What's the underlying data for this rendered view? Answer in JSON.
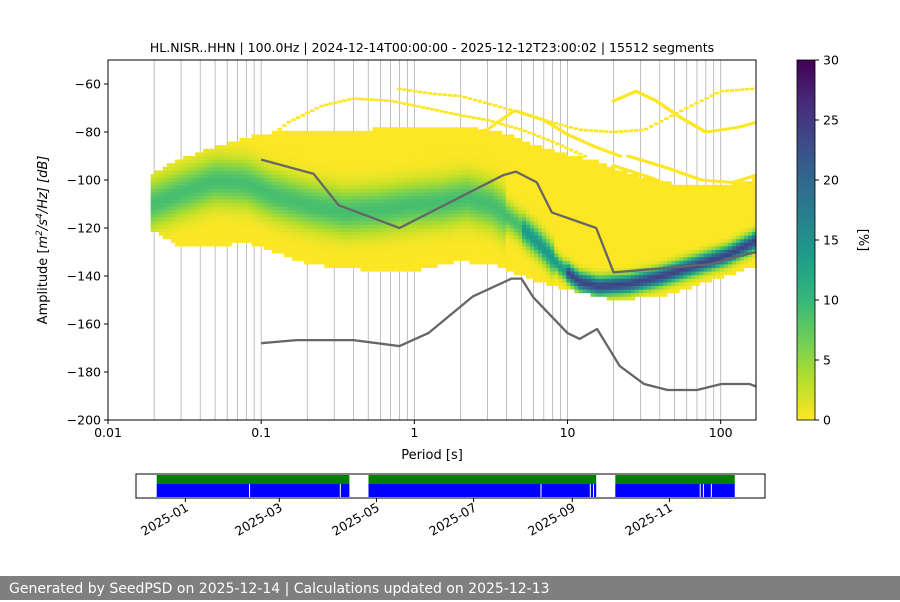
{
  "chart_data": {
    "type": "heatmap",
    "title": "HL.NISR..HHN | 100.0Hz | 2024-12-14T00:00:00 - 2025-12-12T23:00:02 | 15512 segments",
    "xlabel": "Period [s]",
    "ylabel": "Amplitude [m²/s⁴/Hz] [dB]",
    "ylabel_parts": {
      "prefix": "Amplitude [",
      "m": "m",
      "exp2": "2",
      "s": "/s",
      "exp4": "4",
      "rest": "/Hz] [dB]"
    },
    "xscale": "log",
    "xlim": [
      0.01,
      170
    ],
    "ylim": [
      -200,
      -50
    ],
    "x_ticks": [
      {
        "value": 0.01,
        "label": "0.01"
      },
      {
        "value": 0.1,
        "label": "0.1"
      },
      {
        "value": 1,
        "label": "1"
      },
      {
        "value": 10,
        "label": "10"
      },
      {
        "value": 100,
        "label": "100"
      }
    ],
    "y_ticks": [
      {
        "value": -60,
        "label": "−60"
      },
      {
        "value": -80,
        "label": "−80"
      },
      {
        "value": -100,
        "label": "−100"
      },
      {
        "value": -120,
        "label": "−120"
      },
      {
        "value": -140,
        "label": "−140"
      },
      {
        "value": -160,
        "label": "−160"
      },
      {
        "value": -180,
        "label": "−180"
      },
      {
        "value": -200,
        "label": "−200"
      }
    ],
    "grid": "vertical lines at log-period positions",
    "colorbar": {
      "label": "[%]",
      "min": 0,
      "max": 30,
      "ticks": [
        {
          "value": 0,
          "label": "0"
        },
        {
          "value": 5,
          "label": "5"
        },
        {
          "value": 10,
          "label": "10"
        },
        {
          "value": 15,
          "label": "15"
        },
        {
          "value": 20,
          "label": "20"
        },
        {
          "value": 25,
          "label": "25"
        },
        {
          "value": 30,
          "label": "30"
        }
      ],
      "colormap": "viridis_r",
      "colors": [
        "#fde725",
        "#b5de2b",
        "#6ece58",
        "#35b779",
        "#1f9e89",
        "#26828e",
        "#31688e",
        "#3e4989",
        "#482878",
        "#440154"
      ]
    },
    "density": {
      "main_mode": [
        [
          0.019,
          -111
        ],
        [
          0.03,
          -106
        ],
        [
          0.05,
          -101
        ],
        [
          0.08,
          -102
        ],
        [
          0.12,
          -107
        ],
        [
          0.2,
          -111
        ],
        [
          0.35,
          -114
        ],
        [
          0.6,
          -113
        ],
        [
          1.0,
          -111
        ],
        [
          1.5,
          -110
        ],
        [
          2.2,
          -108
        ],
        [
          3.2,
          -111
        ],
        [
          4.5,
          -118
        ],
        [
          6.5,
          -127
        ],
        [
          9,
          -137
        ],
        [
          12,
          -143
        ],
        [
          16,
          -145
        ],
        [
          25,
          -144
        ],
        [
          40,
          -141
        ],
        [
          70,
          -136
        ],
        [
          110,
          -132
        ],
        [
          170,
          -126
        ]
      ],
      "envelope_upper": [
        [
          0.019,
          -98
        ],
        [
          0.03,
          -92
        ],
        [
          0.05,
          -87
        ],
        [
          0.08,
          -83
        ],
        [
          0.12,
          -81
        ],
        [
          0.2,
          -80
        ],
        [
          0.4,
          -80
        ],
        [
          0.7,
          -79
        ],
        [
          1.2,
          -78
        ],
        [
          2,
          -79
        ],
        [
          3.5,
          -80
        ],
        [
          6,
          -86
        ],
        [
          10,
          -90
        ],
        [
          16,
          -93
        ],
        [
          25,
          -98
        ],
        [
          40,
          -101
        ],
        [
          60,
          -103
        ],
        [
          100,
          -103
        ],
        [
          170,
          -100
        ]
      ],
      "envelope_lower": [
        [
          0.019,
          -120
        ],
        [
          0.03,
          -127
        ],
        [
          0.05,
          -127
        ],
        [
          0.08,
          -125
        ],
        [
          0.12,
          -129
        ],
        [
          0.2,
          -134
        ],
        [
          0.35,
          -136
        ],
        [
          0.6,
          -137
        ],
        [
          1.0,
          -137
        ],
        [
          2,
          -133
        ],
        [
          3.5,
          -135
        ],
        [
          6,
          -141
        ],
        [
          10,
          -145
        ],
        [
          20,
          -149
        ],
        [
          40,
          -148
        ],
        [
          70,
          -143
        ],
        [
          110,
          -139
        ],
        [
          170,
          -135
        ]
      ],
      "outlier_traces": [
        [
          [
            0.1,
            -85
          ],
          [
            0.15,
            -76
          ],
          [
            0.25,
            -69
          ],
          [
            0.4,
            -66
          ],
          [
            0.7,
            -67
          ],
          [
            1.2,
            -70
          ],
          [
            2,
            -73
          ],
          [
            3,
            -75
          ],
          [
            5,
            -79
          ],
          [
            8,
            -84
          ],
          [
            13,
            -90
          ]
        ],
        [
          [
            0.8,
            -62
          ],
          [
            1.3,
            -64
          ],
          [
            2,
            -65
          ],
          [
            3,
            -68
          ],
          [
            5,
            -72
          ],
          [
            8,
            -76
          ],
          [
            12,
            -79
          ],
          [
            20,
            -80
          ],
          [
            32,
            -79
          ],
          [
            60,
            -70
          ],
          [
            100,
            -63
          ],
          [
            160,
            -62
          ]
        ],
        [
          [
            1.8,
            -81
          ],
          [
            3,
            -79
          ],
          [
            4.5,
            -71
          ],
          [
            7,
            -75
          ],
          [
            10,
            -81
          ],
          [
            15,
            -86
          ],
          [
            22,
            -90
          ]
        ],
        [
          [
            20,
            -67
          ],
          [
            28,
            -63
          ],
          [
            38,
            -67
          ],
          [
            55,
            -74
          ],
          [
            80,
            -80
          ],
          [
            130,
            -78
          ],
          [
            170,
            -76
          ]
        ],
        [
          [
            20,
            -94
          ],
          [
            35,
            -99
          ],
          [
            60,
            -105
          ],
          [
            100,
            -108
          ],
          [
            170,
            -106
          ]
        ],
        [
          [
            25,
            -90
          ],
          [
            45,
            -95
          ],
          [
            75,
            -100
          ],
          [
            120,
            -101
          ],
          [
            170,
            -98
          ]
        ]
      ]
    },
    "series": [
      {
        "name": "NHNM",
        "color": "#666666",
        "points": [
          [
            0.1,
            -91.5
          ],
          [
            0.22,
            -97.4
          ],
          [
            0.32,
            -110.5
          ],
          [
            0.8,
            -120
          ],
          [
            3.8,
            -98
          ],
          [
            4.6,
            -96.5
          ],
          [
            6.3,
            -101
          ],
          [
            7.9,
            -113.5
          ],
          [
            15.4,
            -120
          ],
          [
            20,
            -138.5
          ],
          [
            89,
            -135
          ],
          [
            110,
            -133
          ],
          [
            170,
            -130
          ]
        ]
      },
      {
        "name": "NLNM",
        "color": "#666666",
        "points": [
          [
            0.1,
            -168
          ],
          [
            0.17,
            -166.7
          ],
          [
            0.4,
            -166.7
          ],
          [
            0.8,
            -169.2
          ],
          [
            1.24,
            -163.7
          ],
          [
            2.4,
            -148.6
          ],
          [
            4.3,
            -141.1
          ],
          [
            5,
            -141.1
          ],
          [
            6,
            -149
          ],
          [
            10,
            -163.8
          ],
          [
            12,
            -166.2
          ],
          [
            15.6,
            -162.1
          ],
          [
            21.9,
            -177.5
          ],
          [
            31.6,
            -185
          ],
          [
            45,
            -187.5
          ],
          [
            70,
            -187.5
          ],
          [
            101,
            -185
          ],
          [
            154,
            -185
          ],
          [
            170,
            -186
          ]
        ]
      }
    ]
  },
  "availability": {
    "date_ticks": [
      "2025-01",
      "2025-03",
      "2025-05",
      "2025-07",
      "2025-09",
      "2025-11"
    ],
    "range": [
      "2024-12-01",
      "2025-12-31"
    ],
    "data_color": "#0000ff",
    "metadata_color": "#008000",
    "segments": [
      [
        "2024-12-14",
        "2025-04-14"
      ],
      [
        "2025-04-26",
        "2025-09-16"
      ],
      [
        "2025-09-28",
        "2025-12-12"
      ]
    ]
  },
  "footer": {
    "text": "Generated by SeedPSD on 2025-12-14 | Calculations updated on 2025-12-13"
  }
}
